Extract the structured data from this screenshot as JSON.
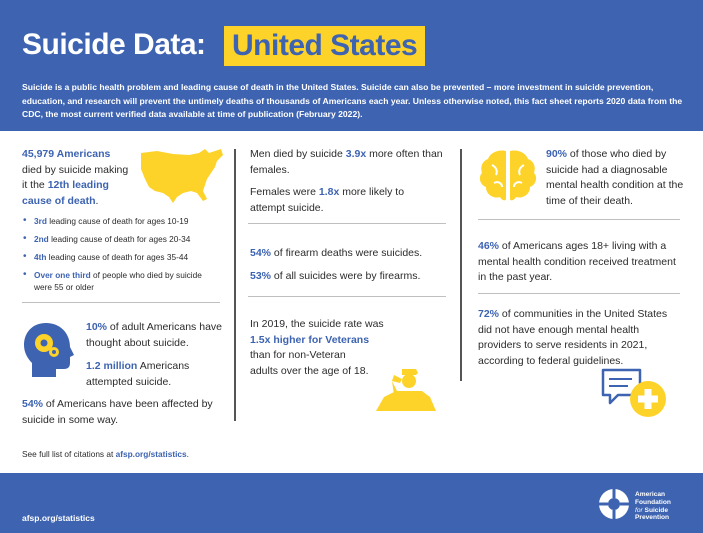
{
  "header": {
    "title": "Suicide Data:",
    "title_highlight": "United States",
    "intro": "Suicide is a public health problem and leading cause of death in the United States. Suicide can also be prevented – more investment in suicide prevention, education, and research will prevent the untimely deaths of thousands of Americans each year. Unless otherwise noted, this fact sheet reports 2020 data from the CDC, the most current verified data available at time of publication (February 2022)."
  },
  "col1": {
    "deaths_value": "45,979 Americans",
    "deaths_text1": "died by suicide making",
    "deaths_text2_pre": "it the ",
    "deaths_rank": "12th leading",
    "deaths_rank2": "cause of death",
    "deaths_period": ".",
    "bullets": [
      {
        "bold": "3rd",
        "text": " leading cause of death for ages 10-19"
      },
      {
        "bold": "2nd",
        "text": " leading cause of death for ages 20-34"
      },
      {
        "bold": "4th",
        "text": " leading cause of death for ages 35-44"
      },
      {
        "bold": "Over one third",
        "text": " of people who died by suicide were 55 or older"
      }
    ],
    "thought_value": "10%",
    "thought_text": " of adult Americans have thought about suicide.",
    "attempt_value": "1.2 million",
    "attempt_text": " Americans attempted suicide.",
    "affected_value": "54%",
    "affected_text": " of Americans have been affected by suicide in some way.",
    "citation_pre": "See full list of citations at ",
    "citation_link": "afsp.org/statistics",
    "citation_post": "."
  },
  "col2": {
    "men_pre": "Men died by suicide ",
    "men_value": "3.9x",
    "men_post": " more often than females.",
    "women_pre": "Females were ",
    "women_value": "1.8x",
    "women_post": " more likely to attempt suicide.",
    "firearm1_value": "54%",
    "firearm1_text": " of firearm deaths were suicides.",
    "firearm2_value": "53%",
    "firearm2_text": " of all suicides were by firearms.",
    "vet_pre": "In 2019, the suicide rate was",
    "vet_value": "1.5x higher for Veterans",
    "vet_post1": "than for non-Veteran",
    "vet_post2": "adults over the age of 18."
  },
  "col3": {
    "mh_value": "90%",
    "mh_text": " of those who died by suicide had a diagnosable mental health condition at the time of their death.",
    "treat_value": "46%",
    "treat_text": " of Americans ages 18+ living with a mental health condition received treatment in the past year.",
    "comm_value": "72%",
    "comm_text": " of communities in the United States did not have enough mental health providers to serve residents in 2021, according to federal guidelines."
  },
  "footer": {
    "url": "afsp.org/statistics",
    "org_line1": "American",
    "org_line2": "Foundation",
    "org_for": "for",
    "org_line3": "Suicide",
    "org_line4": "Prevention"
  },
  "colors": {
    "brand_blue": "#3d63b1",
    "accent_yellow": "#fdd32a"
  }
}
